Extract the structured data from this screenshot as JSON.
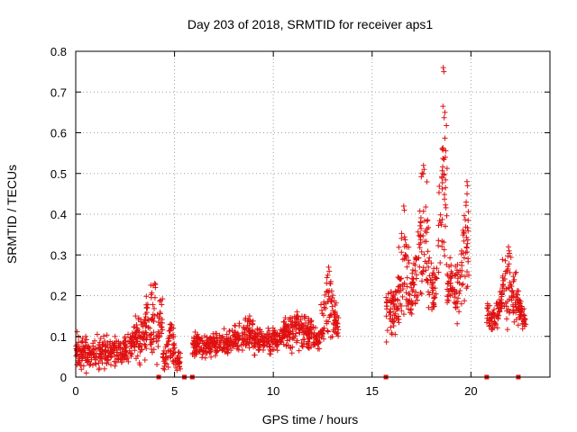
{
  "chart_data": {
    "type": "scatter",
    "title": "Day 203 of 2018, SRMTID for receiver aps1",
    "xlabel": "GPS time / hours",
    "ylabel": "SRMTID / TECUs",
    "xlim": [
      0,
      24
    ],
    "ylim": [
      0,
      0.8
    ],
    "xticks": [
      0,
      5,
      10,
      15,
      20
    ],
    "yticks": [
      0,
      0.1,
      0.2,
      0.3,
      0.4,
      0.5,
      0.6,
      0.7,
      0.8
    ],
    "grid": true,
    "legend": "none",
    "marker": "+",
    "color": "#e01010",
    "series": [
      {
        "name": "aps1",
        "segments": [
          {
            "x_range": [
              0.0,
              4.4
            ],
            "y_base": 0.06,
            "y_spread": 0.06,
            "peak": {
              "x": 4.0,
              "y": 0.23
            }
          },
          {
            "x_range": [
              4.4,
              5.3
            ],
            "y_base": 0.04,
            "y_spread": 0.05,
            "peak": {
              "x": 4.8,
              "y": 0.13
            }
          },
          {
            "x_range": [
              5.9,
              9.0
            ],
            "y_base": 0.08,
            "y_spread": 0.05,
            "peak": {
              "x": 8.8,
              "y": 0.15
            }
          },
          {
            "x_range": [
              9.0,
              12.4
            ],
            "y_base": 0.09,
            "y_spread": 0.05,
            "peak": {
              "x": 11.2,
              "y": 0.16
            }
          },
          {
            "x_range": [
              12.4,
              13.3
            ],
            "y_base": 0.12,
            "y_spread": 0.08,
            "peak": {
              "x": 12.8,
              "y": 0.27
            }
          },
          {
            "x_range": [
              15.7,
              17.0
            ],
            "y_base": 0.16,
            "y_spread": 0.09,
            "peak": {
              "x": 16.6,
              "y": 0.42
            }
          },
          {
            "x_range": [
              17.0,
              18.3
            ],
            "y_base": 0.22,
            "y_spread": 0.12,
            "peak": {
              "x": 17.6,
              "y": 0.52
            }
          },
          {
            "x_range": [
              18.3,
              18.8
            ],
            "y_base": 0.3,
            "y_spread": 0.15,
            "peak": {
              "x": 18.6,
              "y": 0.76
            }
          },
          {
            "x_range": [
              18.8,
              19.9
            ],
            "y_base": 0.22,
            "y_spread": 0.11,
            "peak": {
              "x": 19.8,
              "y": 0.48
            }
          },
          {
            "x_range": [
              20.8,
              22.8
            ],
            "y_base": 0.15,
            "y_spread": 0.07,
            "peak": {
              "x": 21.9,
              "y": 0.32
            }
          }
        ],
        "zero_points_x": [
          4.2,
          5.5,
          5.9,
          15.7,
          20.8,
          22.4
        ]
      }
    ]
  }
}
